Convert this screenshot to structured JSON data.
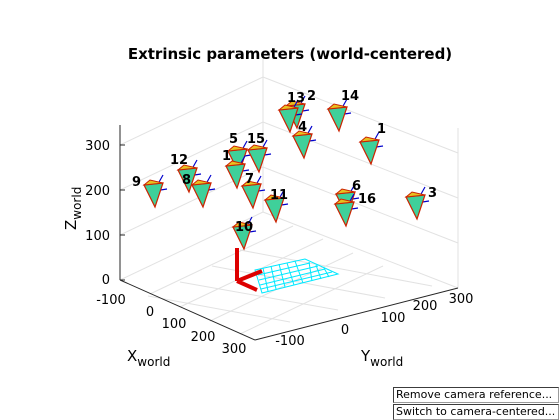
{
  "figure": {
    "title": "Extrinsic parameters (world-centered)",
    "axes": {
      "x_label": "X",
      "x_sub": "world",
      "y_label": "Y",
      "y_sub": "world",
      "z_label": "Z",
      "z_sub": "world",
      "x_ticks": [
        "-100",
        "0",
        "100",
        "200",
        "300"
      ],
      "y_ticks": [
        "-100",
        "0",
        "100",
        "200",
        "300"
      ],
      "z_ticks": [
        "0",
        "100",
        "200",
        "300"
      ]
    },
    "cameras": [
      "1",
      "2",
      "3",
      "4",
      "5",
      "6",
      "7",
      "8",
      "9",
      "10",
      "11",
      "12",
      "13",
      "14",
      "15",
      "16",
      "1"
    ]
  },
  "colors": {
    "camera_fill": "#3fd09a",
    "camera_edge": "#cc2200",
    "camera_axis": "#0000cc",
    "origin_axis": "#dd0000",
    "board_grid": "#00e8ff",
    "gridline": "#e2e2e2"
  },
  "buttons": {
    "remove_camera_reference": "Remove camera reference...",
    "switch_camera_centered": "Switch to camera-centered..."
  }
}
